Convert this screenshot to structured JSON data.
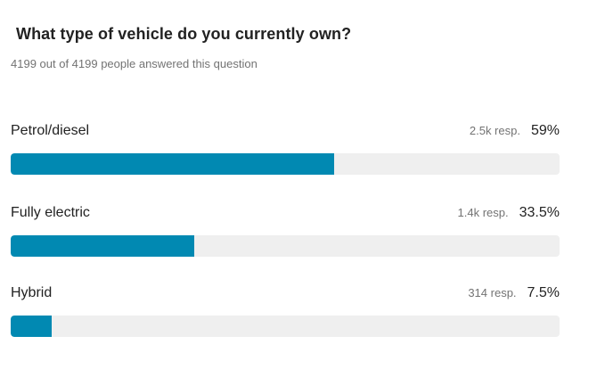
{
  "question": {
    "title": "What type of vehicle do you currently own?",
    "answered": "4199 out of 4199 people answered this question"
  },
  "colors": {
    "bar_fill": "#0189b2",
    "bar_track": "#efefef"
  },
  "options": [
    {
      "label": "Petrol/diesel",
      "responses": "2.5k resp.",
      "percent": "59%",
      "fraction": 0.59
    },
    {
      "label": "Fully electric",
      "responses": "1.4k resp.",
      "percent": "33.5%",
      "fraction": 0.335
    },
    {
      "label": "Hybrid",
      "responses": "314 resp.",
      "percent": "7.5%",
      "fraction": 0.075
    }
  ]
}
